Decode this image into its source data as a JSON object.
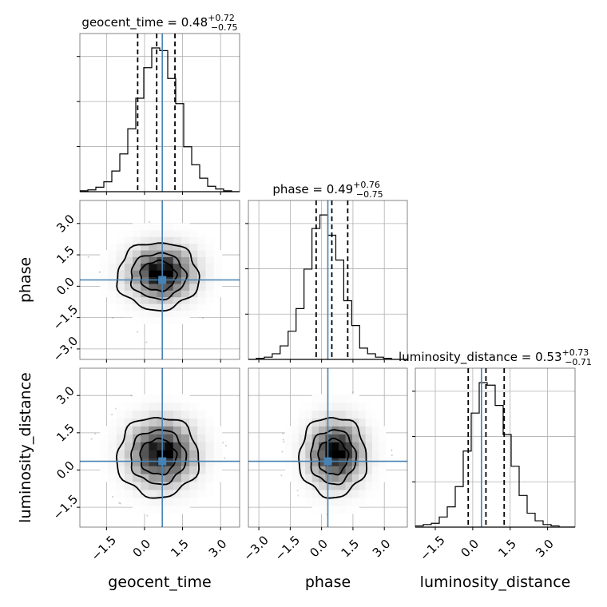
{
  "chart_data": {
    "type": "corner",
    "parameters": [
      {
        "name": "geocent_time",
        "axis_label": "geocent_time",
        "title": {
          "prefix": "geocent_time = ",
          "median": "0.48",
          "plus": "+0.72",
          "minus": "−0.75"
        },
        "median": 0.48,
        "q_low": -0.27,
        "q_high": 1.2,
        "truth": 0.7,
        "range": [
          -2.55,
          3.75
        ],
        "ticks": [
          {
            "v": -1.5,
            "label": "−1.5"
          },
          {
            "v": 0.0,
            "label": "0.0"
          },
          {
            "v": 1.5,
            "label": "1.5"
          },
          {
            "v": 3.0,
            "label": "3.0"
          }
        ],
        "hist": {
          "edges_start": -2.55,
          "bin_width": 0.315,
          "counts": [
            1,
            2,
            5,
            11,
            23,
            42,
            70,
            104,
            138,
            160,
            157,
            126,
            98,
            50,
            30,
            15,
            6,
            3,
            1,
            0
          ]
        }
      },
      {
        "name": "phase",
        "axis_label": "phase",
        "title": {
          "prefix": "phase = ",
          "median": "0.49",
          "plus": "+0.76",
          "minus": "−0.75"
        },
        "median": 0.49,
        "q_low": -0.26,
        "q_high": 1.25,
        "truth": 0.3,
        "range": [
          -3.5,
          4.1
        ],
        "ticks": [
          {
            "v": -3.0,
            "label": "−3.0"
          },
          {
            "v": -1.5,
            "label": "−1.5"
          },
          {
            "v": 0.0,
            "label": "0.0"
          },
          {
            "v": 1.5,
            "label": "1.5"
          },
          {
            "v": 3.0,
            "label": "3.0"
          }
        ],
        "hist": {
          "edges_start": -3.5,
          "bin_width": 0.38,
          "counts": [
            0,
            1,
            2,
            5,
            12,
            25,
            45,
            80,
            116,
            128,
            110,
            88,
            52,
            30,
            10,
            5,
            2,
            1,
            0,
            0
          ]
        }
      },
      {
        "name": "luminosity_distance",
        "axis_label": "luminosity_distance",
        "title": {
          "prefix": "luminosity_distance = ",
          "median": "0.53",
          "plus": "+0.73",
          "minus": "−0.71"
        },
        "median": 0.53,
        "q_low": -0.18,
        "q_high": 1.26,
        "truth": 0.35,
        "range": [
          -2.3,
          4.1
        ],
        "ticks": [
          {
            "v": -1.5,
            "label": "−1.5"
          },
          {
            "v": 0.0,
            "label": "0.0"
          },
          {
            "v": 1.5,
            "label": "1.5"
          },
          {
            "v": 3.0,
            "label": "3.0"
          }
        ],
        "hist": {
          "edges_start": -2.3,
          "bin_width": 0.32,
          "counts": [
            1,
            2,
            3,
            8,
            16,
            32,
            60,
            90,
            114,
            112,
            96,
            73,
            48,
            25,
            11,
            5,
            2,
            1,
            0,
            0
          ]
        }
      }
    ],
    "truth_color": "#4682b4",
    "line_color": "#000000",
    "grid": true,
    "quantiles": [
      0.16,
      0.5,
      0.84
    ],
    "contour_levels": [
      0.39,
      0.86,
      0.99
    ]
  }
}
